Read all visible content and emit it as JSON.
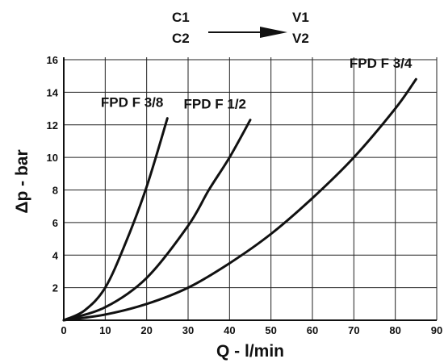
{
  "flow": {
    "inputs": [
      "C1",
      "C2"
    ],
    "outputs": [
      "V1",
      "V2"
    ]
  },
  "chart_data": {
    "type": "line",
    "xlabel": "Q - l/min",
    "ylabel": "Δp - bar",
    "xlim": [
      0,
      90
    ],
    "ylim": [
      0,
      16
    ],
    "xticks": [
      0,
      10,
      20,
      30,
      40,
      50,
      60,
      70,
      80,
      90
    ],
    "xtick_labels": [
      "0",
      "10",
      "20",
      "30",
      "40",
      "50",
      "60",
      "70",
      "80",
      "90"
    ],
    "yticks": [
      2,
      4,
      6,
      8,
      10,
      12,
      14,
      16
    ],
    "ytick_labels": [
      "2",
      "4",
      "6",
      "8",
      "10",
      "12",
      "14",
      "16"
    ],
    "grid": true,
    "series": [
      {
        "name": "FPD F 3/8",
        "x": [
          0,
          5,
          10,
          15,
          20,
          25
        ],
        "y": [
          0,
          0.6,
          2,
          4.8,
          8.2,
          12.4
        ]
      },
      {
        "name": "FPD F 1/2",
        "x": [
          0,
          10,
          20,
          30,
          35,
          40,
          45
        ],
        "y": [
          0,
          0.8,
          2.6,
          5.8,
          8,
          10,
          12.3
        ]
      },
      {
        "name": "FPD F 3/4",
        "x": [
          0,
          10,
          20,
          30,
          40,
          50,
          60,
          70,
          80,
          85
        ],
        "y": [
          0,
          0.35,
          1,
          2,
          3.5,
          5.3,
          7.5,
          10,
          13,
          14.8
        ]
      }
    ]
  }
}
